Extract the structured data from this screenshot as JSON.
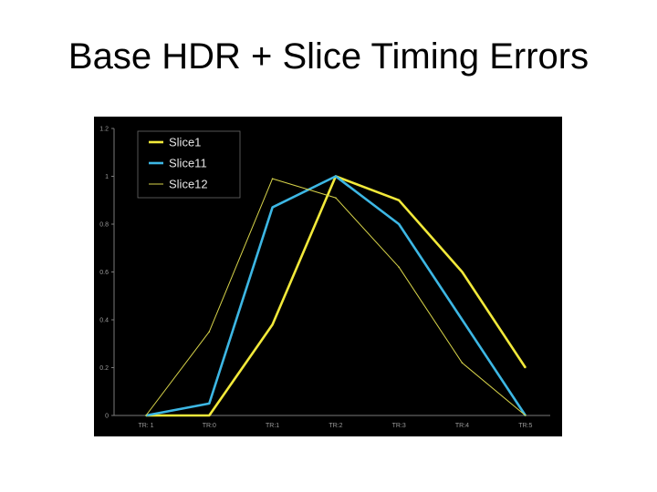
{
  "title": "Base HDR + Slice Timing Errors",
  "colors": {
    "background": "#000000",
    "axis": "#7a7a7a",
    "tick_label": "#9a9a9a",
    "legend_border": "#6a6a6a"
  },
  "chart_data": {
    "type": "line",
    "categories": [
      "TR: 1",
      "TR:0",
      "TR:1",
      "TR:2",
      "TR:3",
      "TR:4",
      "TR:5"
    ],
    "ylim": [
      0,
      1.2
    ],
    "yticks": [
      0,
      0.2,
      0.4,
      0.6,
      0.8,
      1,
      1.2
    ],
    "ytick_labels": [
      "0",
      "0.2",
      "0.4",
      "0.6",
      "0.8",
      "1",
      "1.2"
    ],
    "grid": false,
    "legend": "top-left",
    "series": [
      {
        "name": "Slice1",
        "color": "#f2e93a",
        "style": "thick",
        "values": [
          0,
          0,
          0.38,
          1.0,
          0.9,
          0.6,
          0.2
        ]
      },
      {
        "name": "Slice11",
        "color": "#3db7e4",
        "style": "thick",
        "values": [
          0,
          0.05,
          0.87,
          1.0,
          0.8,
          0.4,
          0
        ]
      },
      {
        "name": "Slice12",
        "color": "#d8d44a",
        "style": "thin",
        "values": [
          0,
          0.35,
          0.99,
          0.91,
          0.62,
          0.22,
          0
        ]
      }
    ]
  }
}
